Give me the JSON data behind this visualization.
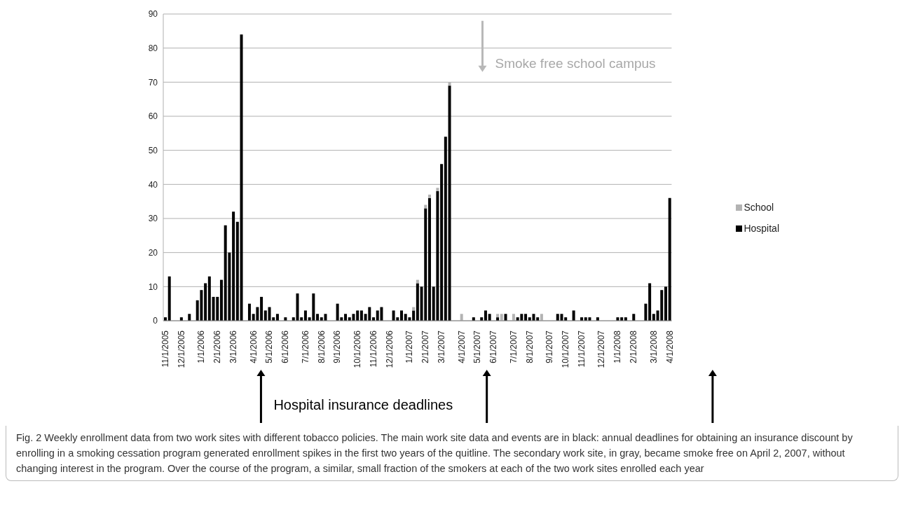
{
  "chart_data": {
    "type": "bar",
    "stacked": true,
    "categories": [
      "11/1/2005",
      null,
      null,
      null,
      "12/1/2005",
      null,
      null,
      null,
      null,
      "1/1/2006",
      null,
      null,
      null,
      "2/1/2006",
      null,
      null,
      null,
      "3/1/2006",
      null,
      null,
      null,
      null,
      "4/1/2006",
      null,
      null,
      null,
      "5/1/2006",
      null,
      null,
      null,
      "6/1/2006",
      null,
      null,
      null,
      null,
      "7/1/2006",
      null,
      null,
      null,
      "8/1/2006",
      null,
      null,
      null,
      "9/1/2006",
      null,
      null,
      null,
      null,
      "10/1/2006",
      null,
      null,
      null,
      "11/1/2006",
      null,
      null,
      null,
      "12/1/2006",
      null,
      null,
      null,
      null,
      "1/1/2007",
      null,
      null,
      null,
      "2/1/2007",
      null,
      null,
      null,
      "3/1/2007",
      null,
      null,
      null,
      null,
      "4/1/2007",
      null,
      null,
      null,
      "5/1/2007",
      null,
      null,
      null,
      "6/1/2007",
      null,
      null,
      null,
      null,
      "7/1/2007",
      null,
      null,
      null,
      "8/1/2007",
      null,
      null,
      null,
      null,
      "9/1/2007",
      null,
      null,
      null,
      "10/1/2007",
      null,
      null,
      null,
      "11/1/2007",
      null,
      null,
      null,
      null,
      "12/1/2007",
      null,
      null,
      null,
      "1/1/2008",
      null,
      null,
      null,
      "2/1/2008",
      null,
      null,
      null,
      null,
      "3/1/2008",
      null,
      null,
      null,
      "4/1/2008"
    ],
    "series": [
      {
        "name": "Hospital",
        "color": "#000000",
        "values": [
          1,
          13,
          0,
          0,
          1,
          0,
          2,
          0,
          6,
          9,
          11,
          13,
          7,
          7,
          12,
          28,
          20,
          32,
          29,
          84,
          0,
          5,
          2,
          4,
          7,
          3,
          4,
          1,
          2,
          0,
          1,
          0,
          1,
          8,
          1,
          3,
          1,
          8,
          2,
          1,
          2,
          0,
          0,
          5,
          1,
          2,
          1,
          2,
          3,
          3,
          2,
          4,
          1,
          3,
          4,
          0,
          0,
          3,
          1,
          3,
          2,
          1,
          3,
          11,
          10,
          33,
          36,
          10,
          38,
          46,
          54,
          69,
          0,
          0,
          0,
          0,
          0,
          1,
          0,
          1,
          3,
          2,
          0,
          1,
          0,
          2,
          0,
          0,
          1,
          2,
          2,
          1,
          2,
          1,
          0,
          0,
          0,
          0,
          2,
          2,
          1,
          0,
          3,
          0,
          1,
          1,
          1,
          0,
          1,
          0,
          0,
          0,
          0,
          1,
          1,
          1,
          0,
          2,
          0,
          0,
          5,
          11,
          2,
          3,
          9,
          10,
          36
        ]
      },
      {
        "name": "School",
        "color": "#b3b3b3",
        "values": [
          0,
          0,
          0,
          0,
          0,
          0,
          0,
          0,
          0,
          0,
          0,
          0,
          0,
          0,
          0,
          0,
          0,
          0,
          0,
          0,
          0,
          0,
          0,
          0,
          0,
          0,
          0,
          0,
          0,
          0,
          0,
          0,
          0,
          0,
          0,
          0,
          0,
          0,
          0,
          0,
          0,
          0,
          0,
          0,
          0,
          0,
          0,
          0,
          0,
          0,
          0,
          0,
          0,
          0,
          0,
          0,
          0,
          0,
          0,
          0,
          0,
          0,
          1,
          1,
          0,
          1,
          1,
          0,
          1,
          0,
          0,
          1,
          0,
          0,
          2,
          0,
          0,
          0,
          0,
          0,
          0,
          0,
          0,
          1,
          2,
          0,
          0,
          2,
          0,
          0,
          0,
          0,
          0,
          0,
          2,
          0,
          0,
          0,
          0,
          0,
          0,
          0,
          0,
          0,
          0,
          0,
          0,
          0,
          0,
          0,
          0,
          0,
          0,
          0,
          0,
          0,
          0,
          0,
          0,
          0,
          0,
          0,
          0,
          0,
          0,
          0,
          0
        ]
      }
    ],
    "ylim": [
      0,
      90
    ],
    "yticks": [
      0,
      10,
      20,
      30,
      40,
      50,
      60,
      70,
      80,
      90
    ],
    "grid": "y",
    "legend": "right",
    "annotations": [
      "Smoke free school campus",
      "Hospital insurance deadlines",
      "Fig. 2 Weekly enrollment data from two work sites with different tobacco policies. The main work site data and events are in black: annual deadlines for obtaining an insurance discount by enrolling in a smoking cessation program generated enrollment spikes in the first two years of the quitline. The secondary work site, in gray, became smoke free on April 2, 2007, without changing interest in the program. Over the course of the program, a similar, small fraction of the smokers at each of the two work sites enrolled each year"
    ]
  }
}
